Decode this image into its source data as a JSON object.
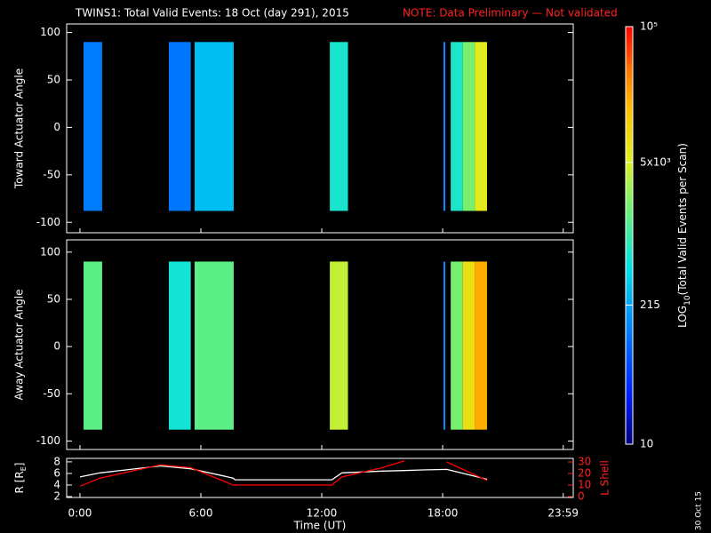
{
  "header": {
    "title": "TWINS1: Total Valid Events: 18 Oct (day 291), 2015",
    "note": "NOTE: Data Preliminary — Not validated",
    "date_stamp": "30 Oct 15"
  },
  "colorbar": {
    "label": [
      "LOG",
      "10",
      "(Total Valid Events per Scan)"
    ],
    "clim": [
      10,
      100000
    ],
    "log": true,
    "ticks": [
      10,
      215,
      {
        "value": 5000,
        "label": "5x10³"
      },
      {
        "value": 100000,
        "label": "10⁵"
      }
    ]
  },
  "chart_data": [
    {
      "type": "heatmap",
      "ylabel": "Toward Actuator Angle",
      "xlim": [
        -0.66,
        24.48
      ],
      "ylim": [
        -111,
        109
      ],
      "yticks": [
        100,
        50,
        0,
        -50,
        -100
      ],
      "angle_range": [
        -88,
        90
      ],
      "strips": [
        {
          "start": 0.18,
          "end": 1.1,
          "value": 120
        },
        {
          "start": 4.41,
          "end": 5.5,
          "value": 110
        },
        {
          "start": 5.69,
          "end": 7.63,
          "value": 300
        },
        {
          "start": 12.4,
          "end": 13.3,
          "value": 650
        },
        {
          "start": 18.04,
          "end": 18.13,
          "value": 150
        },
        {
          "start": 18.4,
          "end": 19.0,
          "value": 700
        },
        {
          "start": 19.0,
          "end": 19.6,
          "value": 2000
        },
        {
          "start": 19.6,
          "end": 20.2,
          "value": 6000
        }
      ]
    },
    {
      "type": "heatmap",
      "ylabel": "Away Actuator Angle",
      "xlim": [
        -0.66,
        24.48
      ],
      "ylim": [
        -109,
        113
      ],
      "yticks": [
        100,
        50,
        0,
        -50,
        -100
      ],
      "angle_range": [
        -88,
        90
      ],
      "strips": [
        {
          "start": 0.18,
          "end": 1.1,
          "value": 1500
        },
        {
          "start": 4.41,
          "end": 5.5,
          "value": 600
        },
        {
          "start": 5.69,
          "end": 7.63,
          "value": 1500
        },
        {
          "start": 12.4,
          "end": 13.3,
          "value": 4000
        },
        {
          "start": 18.04,
          "end": 18.13,
          "value": 150
        },
        {
          "start": 18.4,
          "end": 19.0,
          "value": 2000
        },
        {
          "start": 19.0,
          "end": 19.6,
          "value": 8000
        },
        {
          "start": 19.6,
          "end": 20.2,
          "value": 20000
        }
      ]
    },
    {
      "type": "line",
      "ylabel": [
        "R [R",
        "E",
        "]"
      ],
      "y2label": "L Shell",
      "xlabel": "Time (UT)",
      "xlim": [
        -0.66,
        24.48
      ],
      "xticks": [
        {
          "value": 0,
          "label": "0:00"
        },
        {
          "value": 6,
          "label": "6:00"
        },
        {
          "value": 12,
          "label": "12:00"
        },
        {
          "value": 18,
          "label": "18:00"
        },
        {
          "value": 23.983,
          "label": "23:59"
        }
      ],
      "ylim": [
        1.85,
        8.6
      ],
      "yticks": [
        2,
        4,
        6,
        8
      ],
      "y2lim": [
        -0.77,
        33.1
      ],
      "y2ticks": [
        0,
        10,
        20,
        30
      ],
      "x": [
        0,
        1,
        4,
        5.5,
        7.6,
        7.7,
        12.5,
        13,
        15,
        16.1,
        17,
        18.2,
        20.2
      ],
      "series": [
        {
          "color": "#ffffff",
          "values": [
            5.4,
            6.1,
            7.3,
            6.8,
            5.2,
            4.9,
            4.9,
            6.1,
            6.4,
            6.5,
            6.6,
            6.7,
            5.0
          ]
        },
        {
          "color": "#ff0000",
          "axis": "y2",
          "values": [
            9,
            16,
            27.5,
            25,
            10,
            10,
            10,
            17,
            25,
            31,
            null,
            30,
            14
          ]
        }
      ]
    }
  ]
}
